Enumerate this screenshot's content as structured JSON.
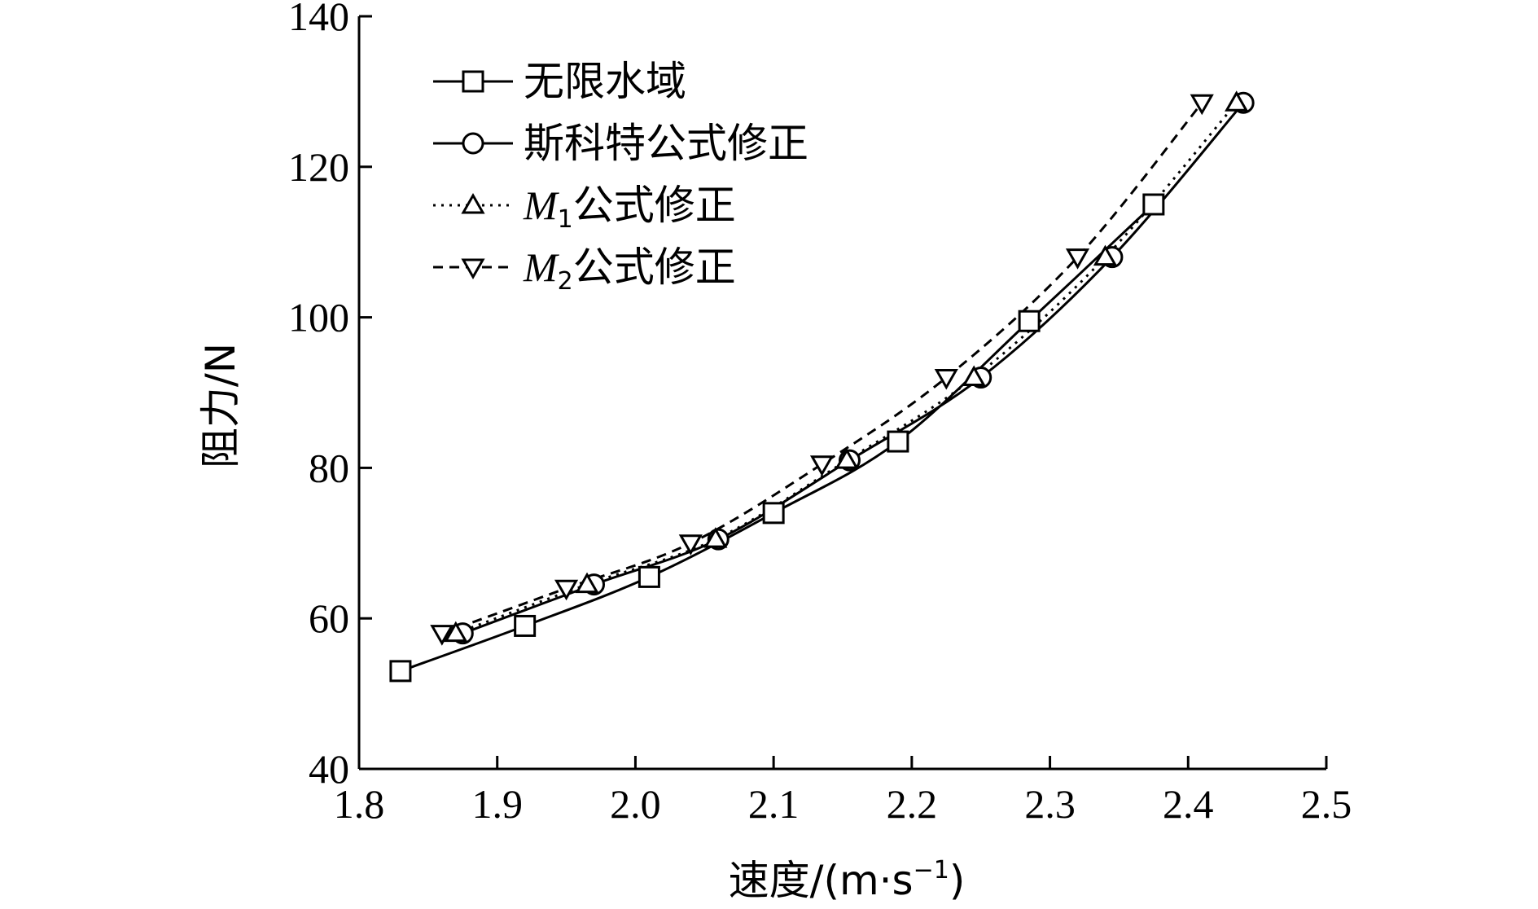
{
  "chart_data": {
    "type": "line",
    "title": "",
    "xlabel": "速度/(m·s",
    "xlabel_superscript": "−1",
    "xlabel_close": ")",
    "ylabel": "阻力/N",
    "xlim": [
      1.8,
      2.5
    ],
    "ylim": [
      40,
      140
    ],
    "x_ticks": [
      "1.8",
      "1.9",
      "2.0",
      "2.1",
      "2.2",
      "2.3",
      "2.4",
      "2.5"
    ],
    "y_ticks": [
      "40",
      "60",
      "80",
      "100",
      "120",
      "140"
    ],
    "grid": false,
    "legend_position": "top-left",
    "series": [
      {
        "name": "无限水域",
        "marker": "square",
        "line_style": "solid",
        "x": [
          1.83,
          1.92,
          2.01,
          2.1,
          2.19,
          2.285,
          2.375
        ],
        "y": [
          53.0,
          59.0,
          65.5,
          74.0,
          83.5,
          99.5,
          115.0
        ]
      },
      {
        "name": "斯科特公式修正",
        "marker": "circle",
        "line_style": "solid",
        "x": [
          1.875,
          1.97,
          2.06,
          2.155,
          2.25,
          2.345,
          2.44
        ],
        "y": [
          58.0,
          64.5,
          70.5,
          81.0,
          92.0,
          108.0,
          128.5
        ]
      },
      {
        "name": "公式修正",
        "name_prefix": "M",
        "name_subscript": "1",
        "marker": "triangle-up",
        "line_style": "dotted",
        "x": [
          1.87,
          1.965,
          2.058,
          2.153,
          2.245,
          2.34,
          2.435
        ],
        "y": [
          58.0,
          64.5,
          70.5,
          81.0,
          92.0,
          108.0,
          128.5
        ]
      },
      {
        "name": "公式修正",
        "name_prefix": "M",
        "name_subscript": "2",
        "marker": "triangle-down",
        "line_style": "dashed",
        "x": [
          1.86,
          1.95,
          2.04,
          2.135,
          2.225,
          2.32,
          2.41
        ],
        "y": [
          58.0,
          64.0,
          70.0,
          80.5,
          92.0,
          108.0,
          128.5
        ]
      }
    ]
  }
}
